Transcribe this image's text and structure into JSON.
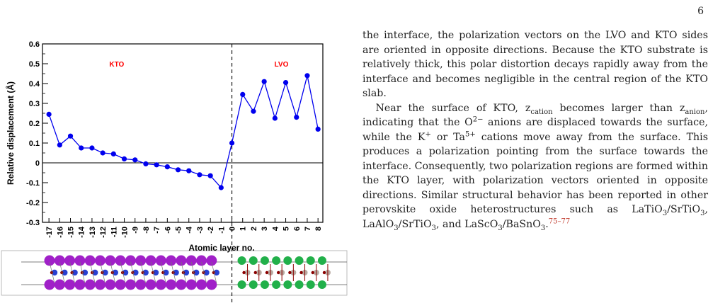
{
  "page": {
    "number": "6"
  },
  "figure": {
    "crystal_note": "",
    "chart_data": {
      "type": "line",
      "xlabel": "Atomic layer no.",
      "ylabel": "Relative displacement (Å)",
      "ylim": [
        -0.3,
        0.6
      ],
      "yticks": [
        "0.6",
        "0.5",
        "0.4",
        "0.3",
        "0.2",
        "0.1",
        "0",
        "-0.1",
        "-0.2",
        "-0.3"
      ],
      "xticks": [
        "-17",
        "-16",
        "-15",
        "-14",
        "-13",
        "-12",
        "-11",
        "-10",
        "-9",
        "-8",
        "-7",
        "-6",
        "-5",
        "-4",
        "-3",
        "-2",
        "-1",
        "0",
        "1",
        "2",
        "3",
        "4",
        "5",
        "6",
        "7",
        "8"
      ],
      "region_labels": [
        "KTO",
        "LVO"
      ],
      "region_color": "#ff0000",
      "series_color": "#0000ee",
      "x": [
        -17,
        -16,
        -15,
        -14,
        -13,
        -12,
        -11,
        -10,
        -9,
        -8,
        -7,
        -6,
        -5,
        -4,
        -3,
        -2,
        -1,
        0,
        1,
        2,
        3,
        4,
        5,
        6,
        7,
        8
      ],
      "values": [
        0.245,
        0.09,
        0.135,
        0.075,
        0.075,
        0.05,
        0.045,
        0.02,
        0.015,
        -0.005,
        -0.01,
        -0.02,
        -0.035,
        -0.04,
        -0.06,
        -0.065,
        -0.125,
        0.1,
        0.345,
        0.26,
        0.41,
        0.225,
        0.405,
        0.23,
        0.44,
        0.17
      ],
      "interface_x": 0,
      "zero_line": true
    }
  },
  "text": {
    "p1": "the interface, the polarization vectors on the LVO and KTO sides are oriented in opposite directions. Because the KTO substrate is relatively thick, this polar distortion decays rapidly away from the interface and becomes negligible in the central region of the KTO slab.",
    "p2_a": "Near the surface of KTO, z",
    "p2_sub1": "cation",
    "p2_b": " becomes larger than z",
    "p2_sub2": "anion",
    "p2_c": ", indicating that the O",
    "p2_sup1": "2−",
    "p2_d": " anions are displaced towards the surface, while the K",
    "p2_sup2": "+",
    "p2_e": " or Ta",
    "p2_sup3": "5+",
    "p2_f": " cations move away from the surface. This produces a polarization pointing from the surface towards the interface. Consequently, two polarization regions are formed within the KTO layer, with polarization vectors oriented in opposite directions. Similar structural behavior has been reported in other perovskite oxide heterostructures such as LaTiO",
    "p2_sub3": "3",
    "p2_g": "/SrTiO",
    "p2_sub4": "3",
    "p2_h": ", LaAlO",
    "p2_sub5": "3",
    "p2_i": "/SrTiO",
    "p2_sub6": "3",
    "p2_j": ", and LaScO",
    "p2_sub7": "3",
    "p2_k": "/BaSnO",
    "p2_sub8": "3",
    "p2_l": ".",
    "p2_ref": "75–77"
  }
}
